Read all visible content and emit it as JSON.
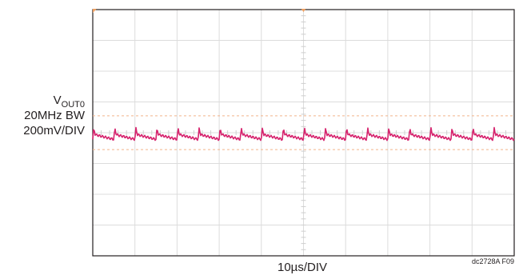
{
  "chart_data": {
    "type": "line",
    "channel_label": {
      "main": "V",
      "subscript": "OUT0"
    },
    "bandwidth_label": "20MHz BW",
    "vertical_scale_label": "200mV/DIV",
    "time_scale_label": "10µs/DIV",
    "figure_code": "dc2728A F09",
    "grid": {
      "horizontal_divisions": 10,
      "vertical_divisions": 8,
      "minor_ticks_per_division": 5
    },
    "xlim_divisions": [
      0,
      10
    ],
    "ylim_divisions": [
      -4,
      4
    ],
    "trace": {
      "color": "#d6246e",
      "period_divisions": 0.5,
      "baseline_divisions": -0.12,
      "peak_to_peak_divisions": 0.55
    },
    "cursor_lines": {
      "color": "#f2b38a",
      "upper_divisions": 0.55,
      "lower_divisions": -0.55
    },
    "trigger_marker_color": "#f0a060"
  }
}
